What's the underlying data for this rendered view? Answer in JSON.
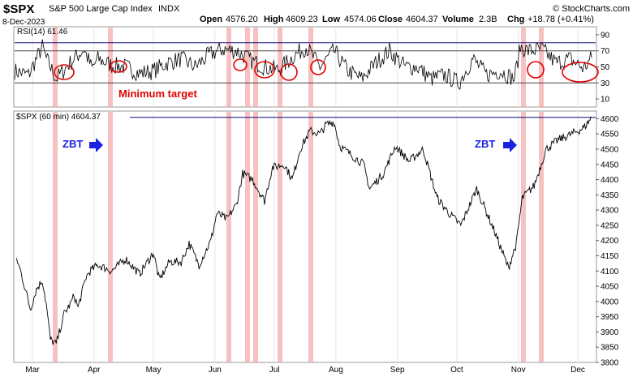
{
  "header": {
    "symbol": "$SPX",
    "name": "S&P 500 Large Cap Index",
    "exchange": "INDX",
    "date": "8-Dec-2023",
    "open_label": "Open",
    "open": "4576.20",
    "high_label": "High",
    "high": "4609.23",
    "low_label": "Low",
    "low": "4574.06",
    "close_label": "Close",
    "close": "4604.37",
    "volume_label": "Volume",
    "volume": "2.3B",
    "chg_label": "Chg",
    "chg": "+18.78 (+0.41%)",
    "brand": "© StockCharts.com"
  },
  "rsi_panel": {
    "label": "RSI(14) 61.46",
    "annotation_min_target": "Minimum target"
  },
  "price_panel": {
    "label": "$SPX (60 min) 4604.37",
    "zbt_left": "ZBT",
    "zbt_right": "ZBT"
  },
  "colors": {
    "price_line": "#000000",
    "rsi_line": "#000000",
    "threshold_line": "#0a0a78",
    "shade": "#f4a7a7",
    "annotation": "#e00000",
    "zbt_text": "#1a22e0"
  },
  "chart_data": [
    {
      "type": "line",
      "title": "RSI(14) 61.46",
      "series": [
        {
          "name": "RSI(14)",
          "x": [
            "2023-02-20",
            "2023-02-27",
            "2023-03-06",
            "2023-03-08",
            "2023-03-13",
            "2023-03-20",
            "2023-03-27",
            "2023-03-31",
            "2023-04-03",
            "2023-04-10",
            "2023-04-17",
            "2023-04-24",
            "2023-05-01",
            "2023-05-08",
            "2023-05-15",
            "2023-05-22",
            "2023-05-29",
            "2023-06-05",
            "2023-06-12",
            "2023-06-19",
            "2023-06-26",
            "2023-07-03",
            "2023-07-10",
            "2023-07-17",
            "2023-07-24",
            "2023-07-31",
            "2023-08-07",
            "2023-08-14",
            "2023-08-21",
            "2023-08-28",
            "2023-09-05",
            "2023-09-11",
            "2023-09-18",
            "2023-09-25",
            "2023-10-02",
            "2023-10-09",
            "2023-10-16",
            "2023-10-23",
            "2023-10-30",
            "2023-11-02",
            "2023-11-06",
            "2023-11-13",
            "2023-11-20",
            "2023-11-27",
            "2023-12-04",
            "2023-12-08"
          ],
          "values": [
            45,
            40,
            75,
            60,
            35,
            55,
            72,
            48,
            60,
            52,
            50,
            42,
            45,
            55,
            60,
            50,
            65,
            72,
            70,
            58,
            50,
            46,
            62,
            75,
            50,
            70,
            45,
            35,
            55,
            70,
            50,
            50,
            35,
            40,
            30,
            60,
            40,
            45,
            35,
            75,
            70,
            72,
            55,
            60,
            48,
            61.46
          ]
        }
      ],
      "ylim": [
        0,
        100
      ],
      "yticks": [
        10,
        30,
        50,
        70,
        90
      ],
      "threshold_lines": [
        80,
        70,
        30
      ],
      "annotations": [
        "Minimum target"
      ]
    },
    {
      "type": "line",
      "title": "$SPX (60 min) 4604.37",
      "series": [
        {
          "name": "$SPX (60 min)",
          "x": [
            "2023-02-21",
            "2023-02-23",
            "2023-02-28",
            "2023-03-03",
            "2023-03-06",
            "2023-03-08",
            "2023-03-10",
            "2023-03-13",
            "2023-03-15",
            "2023-03-17",
            "2023-03-20",
            "2023-03-22",
            "2023-03-24",
            "2023-03-28",
            "2023-03-30",
            "2023-04-03",
            "2023-04-10",
            "2023-04-17",
            "2023-04-24",
            "2023-04-27",
            "2023-05-01",
            "2023-05-04",
            "2023-05-09",
            "2023-05-15",
            "2023-05-19",
            "2023-05-24",
            "2023-05-30",
            "2023-06-02",
            "2023-06-07",
            "2023-06-12",
            "2023-06-15",
            "2023-06-20",
            "2023-06-26",
            "2023-06-30",
            "2023-07-06",
            "2023-07-10",
            "2023-07-14",
            "2023-07-19",
            "2023-07-24",
            "2023-07-27",
            "2023-07-31",
            "2023-08-03",
            "2023-08-09",
            "2023-08-15",
            "2023-08-18",
            "2023-08-25",
            "2023-08-31",
            "2023-09-07",
            "2023-09-14",
            "2023-09-21",
            "2023-09-27",
            "2023-10-03",
            "2023-10-11",
            "2023-10-20",
            "2023-10-27",
            "2023-10-31",
            "2023-11-03",
            "2023-11-09",
            "2023-11-15",
            "2023-11-21",
            "2023-11-28",
            "2023-12-04",
            "2023-12-08"
          ],
          "values": [
            4140,
            4100,
            3975,
            4040,
            4070,
            3990,
            3875,
            3860,
            3910,
            3960,
            3990,
            4020,
            3980,
            4080,
            4100,
            4120,
            4100,
            4140,
            4090,
            4120,
            4160,
            4070,
            4130,
            4130,
            4190,
            4120,
            4200,
            4290,
            4270,
            4320,
            4420,
            4400,
            4330,
            4440,
            4450,
            4400,
            4500,
            4560,
            4550,
            4580,
            4590,
            4510,
            4480,
            4450,
            4370,
            4420,
            4510,
            4460,
            4500,
            4340,
            4290,
            4250,
            4370,
            4230,
            4110,
            4190,
            4340,
            4380,
            4500,
            4530,
            4550,
            4570,
            4604.37
          ]
        }
      ],
      "ylim": [
        3800,
        4625
      ],
      "yticks": [
        3800,
        3850,
        3900,
        3950,
        4000,
        4050,
        4100,
        4150,
        4200,
        4250,
        4300,
        4350,
        4400,
        4450,
        4500,
        4550,
        4600
      ],
      "xticks": [
        "Mar",
        "Apr",
        "May",
        "Jun",
        "Jul",
        "Aug",
        "Sep",
        "Oct",
        "Nov",
        "Dec"
      ],
      "annotations": [
        "ZBT",
        "ZBT"
      ]
    }
  ]
}
